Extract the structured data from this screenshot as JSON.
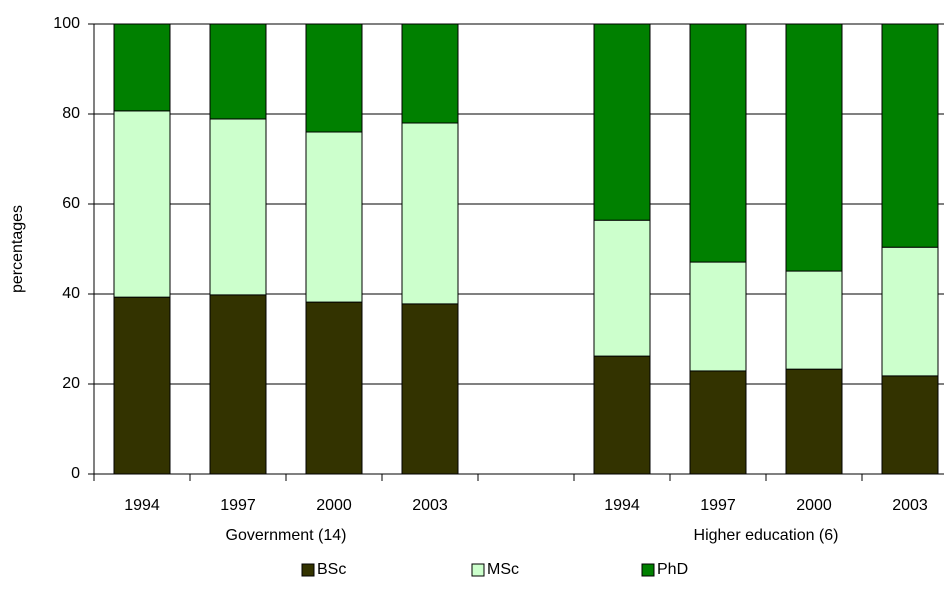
{
  "chart_data": {
    "type": "stacked_bar",
    "y_label": "percentages",
    "categories": [
      "1994",
      "1997",
      "2000",
      "2003",
      null,
      "1994",
      "1997",
      "2000",
      "2003"
    ],
    "groups": [
      "Government (14)",
      "Higher education (6)"
    ],
    "series": [
      {
        "name": "BSc",
        "color": "#333300",
        "values": [
          39.3,
          39.8,
          38.2,
          37.8,
          null,
          26.2,
          22.9,
          23.3,
          21.8
        ]
      },
      {
        "name": "MSc",
        "color": "#ccffcc",
        "values": [
          41.4,
          39.1,
          37.8,
          40.2,
          null,
          30.2,
          24.2,
          21.8,
          28.6
        ]
      },
      {
        "name": "PhD",
        "color": "#008000",
        "values": [
          19.3,
          21.1,
          24.0,
          22.0,
          null,
          43.6,
          52.9,
          54.9,
          49.6
        ]
      }
    ],
    "ylim": [
      0,
      100
    ],
    "yticks": [
      0,
      20,
      40,
      60,
      80,
      100
    ],
    "grid": true,
    "legend": "bottom"
  }
}
